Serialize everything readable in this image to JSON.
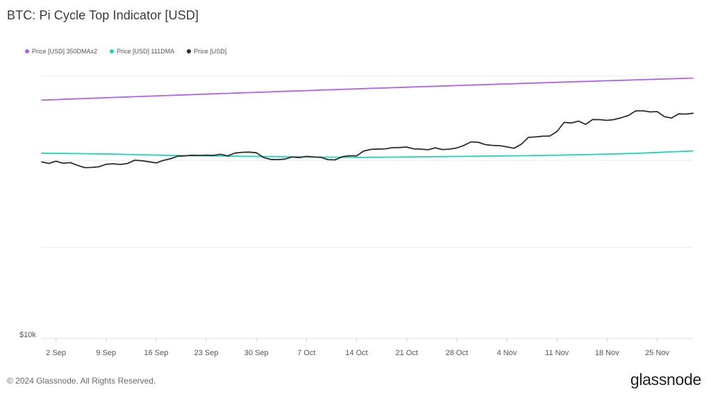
{
  "title": "BTC: Pi Cycle Top Indicator [USD]",
  "footer": {
    "copyright": "© 2024 Glassnode. All Rights Reserved.",
    "brand": "glassnode"
  },
  "chart_data": {
    "type": "line",
    "title": "BTC: Pi Cycle Top Indicator [USD]",
    "yscale": "log",
    "ytick_labels": [
      "$10k"
    ],
    "ylim": [
      10000,
      170000
    ],
    "grid": true,
    "legend_position": "top-left",
    "x": [
      "2024-08-31",
      "2024-09-01",
      "2024-09-02",
      "2024-09-03",
      "2024-09-04",
      "2024-09-05",
      "2024-09-06",
      "2024-09-07",
      "2024-09-08",
      "2024-09-09",
      "2024-09-10",
      "2024-09-11",
      "2024-09-12",
      "2024-09-13",
      "2024-09-14",
      "2024-09-15",
      "2024-09-16",
      "2024-09-17",
      "2024-09-18",
      "2024-09-19",
      "2024-09-20",
      "2024-09-21",
      "2024-09-22",
      "2024-09-23",
      "2024-09-24",
      "2024-09-25",
      "2024-09-26",
      "2024-09-27",
      "2024-09-28",
      "2024-09-29",
      "2024-09-30",
      "2024-10-01",
      "2024-10-02",
      "2024-10-03",
      "2024-10-04",
      "2024-10-05",
      "2024-10-06",
      "2024-10-07",
      "2024-10-08",
      "2024-10-09",
      "2024-10-10",
      "2024-10-11",
      "2024-10-12",
      "2024-10-13",
      "2024-10-14",
      "2024-10-15",
      "2024-10-16",
      "2024-10-17",
      "2024-10-18",
      "2024-10-19",
      "2024-10-20",
      "2024-10-21",
      "2024-10-22",
      "2024-10-23",
      "2024-10-24",
      "2024-10-25",
      "2024-10-26",
      "2024-10-27",
      "2024-10-28",
      "2024-10-29",
      "2024-10-30",
      "2024-10-31",
      "2024-11-01",
      "2024-11-02",
      "2024-11-03",
      "2024-11-04",
      "2024-11-05",
      "2024-11-06",
      "2024-11-07",
      "2024-11-08",
      "2024-11-09",
      "2024-11-10",
      "2024-11-11",
      "2024-11-12",
      "2024-11-13",
      "2024-11-14",
      "2024-11-15",
      "2024-11-16",
      "2024-11-17",
      "2024-11-18",
      "2024-11-19",
      "2024-11-20",
      "2024-11-21",
      "2024-11-22",
      "2024-11-23",
      "2024-11-24",
      "2024-11-25",
      "2024-11-26",
      "2024-11-27",
      "2024-11-28",
      "2024-11-29",
      "2024-11-30"
    ],
    "x_ticks": [
      {
        "date": "2024-09-02",
        "label": "2 Sep"
      },
      {
        "date": "2024-09-09",
        "label": "9 Sep"
      },
      {
        "date": "2024-09-16",
        "label": "16 Sep"
      },
      {
        "date": "2024-09-23",
        "label": "23 Sep"
      },
      {
        "date": "2024-09-30",
        "label": "30 Sep"
      },
      {
        "date": "2024-10-07",
        "label": "7 Oct"
      },
      {
        "date": "2024-10-14",
        "label": "14 Oct"
      },
      {
        "date": "2024-10-21",
        "label": "21 Oct"
      },
      {
        "date": "2024-10-28",
        "label": "28 Oct"
      },
      {
        "date": "2024-11-04",
        "label": "4 Nov"
      },
      {
        "date": "2024-11-11",
        "label": "11 Nov"
      },
      {
        "date": "2024-11-18",
        "label": "18 Nov"
      },
      {
        "date": "2024-11-25",
        "label": "25 Nov"
      }
    ],
    "series": [
      {
        "name": "Price [USD] 350DMAx2",
        "color": "#b35ef0",
        "values": [
          110000,
          110300,
          110600,
          110900,
          111200,
          111500,
          111800,
          112100,
          112400,
          112700,
          113000,
          113300,
          113600,
          113900,
          114200,
          114500,
          114800,
          115100,
          115400,
          115700,
          116000,
          116300,
          116600,
          116900,
          117200,
          117500,
          117800,
          118100,
          118400,
          118700,
          119000,
          119300,
          119600,
          119900,
          120200,
          120500,
          120800,
          121100,
          121400,
          121700,
          122000,
          122300,
          122600,
          122900,
          123200,
          123500,
          123800,
          124100,
          124400,
          124700,
          125000,
          125300,
          125600,
          125900,
          126200,
          126500,
          126800,
          127100,
          127400,
          127700,
          128000,
          128300,
          128600,
          128900,
          129200,
          129500,
          129800,
          130100,
          130400,
          130700,
          131000,
          131300,
          131600,
          131900,
          132200,
          132500,
          132800,
          133100,
          133400,
          133700,
          134000,
          134300,
          134600,
          134900,
          135200,
          135500,
          135800,
          136100,
          136400,
          136700,
          137000,
          137300
        ]
      },
      {
        "name": "Price [USD] 111DMA",
        "color": "#1dd3b8",
        "values": [
          64500,
          64450,
          64400,
          64350,
          64300,
          64250,
          64200,
          64150,
          64100,
          64000,
          63900,
          63800,
          63700,
          63600,
          63500,
          63400,
          63300,
          63200,
          63100,
          63000,
          62950,
          62900,
          62850,
          62800,
          62750,
          62700,
          62650,
          62600,
          62550,
          62500,
          62450,
          62400,
          62350,
          62300,
          62250,
          62200,
          62150,
          62100,
          62050,
          62000,
          61980,
          61960,
          61940,
          61920,
          61900,
          61900,
          61920,
          61950,
          61980,
          62010,
          62050,
          62100,
          62150,
          62200,
          62250,
          62300,
          62350,
          62400,
          62450,
          62500,
          62550,
          62600,
          62650,
          62700,
          62750,
          62800,
          62850,
          62900,
          62950,
          63000,
          63080,
          63160,
          63240,
          63320,
          63400,
          63500,
          63600,
          63700,
          63800,
          63900,
          64000,
          64150,
          64300,
          64450,
          64600,
          64800,
          65000,
          65200,
          65400,
          65600,
          65800,
          66000
        ]
      },
      {
        "name": "Price [USD]",
        "color": "#2b2b2b",
        "values": [
          59100,
          58200,
          59500,
          58300,
          58700,
          57100,
          55800,
          55900,
          56300,
          57700,
          58000,
          57600,
          58200,
          60100,
          59800,
          59200,
          58500,
          60000,
          61000,
          62600,
          62800,
          63200,
          63100,
          63300,
          63100,
          63800,
          62800,
          64600,
          65100,
          65200,
          64800,
          61800,
          60600,
          60500,
          60800,
          62100,
          61700,
          62500,
          62100,
          61900,
          60500,
          60300,
          62300,
          62900,
          62800,
          65900,
          67000,
          67300,
          67400,
          68200,
          68300,
          68600,
          67400,
          67200,
          66800,
          68100,
          66900,
          67200,
          68000,
          69800,
          72300,
          72000,
          70300,
          69800,
          69600,
          68700,
          67800,
          70500,
          75600,
          76000,
          76500,
          76700,
          80300,
          87900,
          87400,
          89100,
          86300,
          90500,
          90400,
          89800,
          90500,
          92200,
          94300,
          98700,
          98900,
          97700,
          98000,
          93200,
          91900,
          95800,
          95600,
          96400
        ]
      }
    ]
  }
}
